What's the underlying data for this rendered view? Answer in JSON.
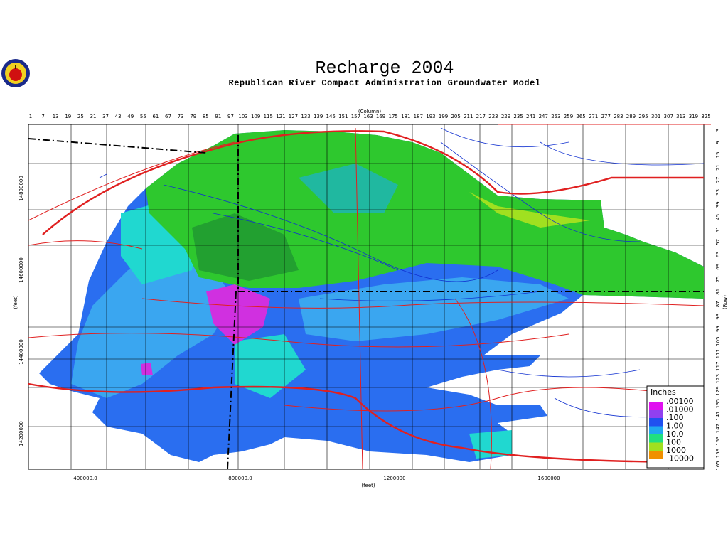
{
  "header": {
    "title": "Recharge 2004",
    "subtitle": "Republican River Compact Administration Groundwater Model"
  },
  "axes": {
    "column_title": "(Column)",
    "columns": [
      1,
      7,
      13,
      19,
      25,
      31,
      37,
      43,
      49,
      55,
      61,
      67,
      73,
      79,
      85,
      91,
      97,
      103,
      109,
      115,
      121,
      127,
      133,
      139,
      145,
      151,
      157,
      163,
      169,
      175,
      181,
      187,
      193,
      199,
      205,
      211,
      217,
      223,
      229,
      235,
      241,
      247,
      253,
      259,
      265,
      271,
      277,
      283,
      289,
      295,
      301,
      307,
      313,
      319,
      325
    ],
    "row_title": "(Row)",
    "rows": [
      3,
      9,
      15,
      21,
      27,
      33,
      39,
      45,
      51,
      57,
      63,
      69,
      75,
      81,
      87,
      93,
      99,
      105,
      111,
      117,
      123,
      129,
      135,
      141,
      147,
      153,
      159,
      165
    ],
    "x_title": "(feet)",
    "x_labels": [
      "400000.0",
      "800000.0",
      "1200000",
      "1600000"
    ],
    "y_title": "(feet)",
    "y_labels": [
      "14800000",
      "14600000",
      "14400000",
      "14200000"
    ]
  },
  "legend": {
    "title": "Inches",
    "labels": [
      ".00100",
      ".01000",
      ".100",
      "1.00",
      "10.0",
      "100",
      "1000",
      "-10000"
    ],
    "colors": [
      "#e010f0",
      "#9040f0",
      "#2050f0",
      "#20a8f0",
      "#20e080",
      "#a0e020",
      "#f09000"
    ]
  }
}
